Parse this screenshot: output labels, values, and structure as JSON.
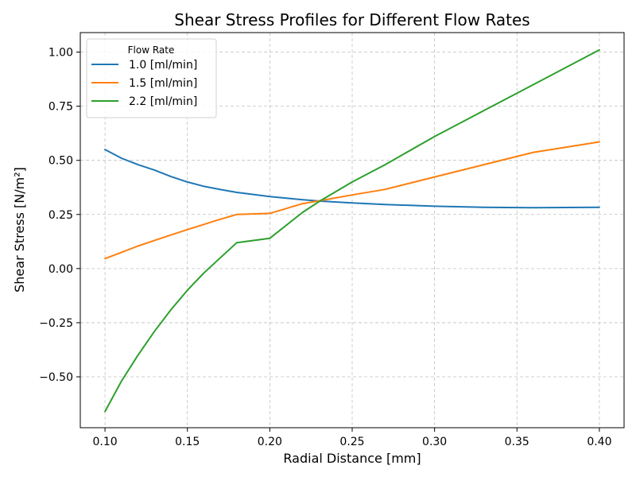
{
  "chart_data": {
    "type": "line",
    "title": "Shear Stress Profiles for Different Flow Rates",
    "xlabel": "Radial Distance [mm]",
    "ylabel": "Shear Stress [N/m²]",
    "xlim": [
      0.085,
      0.415
    ],
    "ylim": [
      -0.735,
      1.09
    ],
    "xticks": [
      0.1,
      0.15,
      0.2,
      0.25,
      0.3,
      0.35,
      0.4
    ],
    "xtick_labels": [
      "0.10",
      "0.15",
      "0.20",
      "0.25",
      "0.30",
      "0.35",
      "0.40"
    ],
    "yticks": [
      -0.5,
      -0.25,
      0.0,
      0.25,
      0.5,
      0.75,
      1.0
    ],
    "ytick_labels": [
      "−0.50",
      "−0.25",
      "0.00",
      "0.25",
      "0.50",
      "0.75",
      "1.00"
    ],
    "grid": true,
    "legend": {
      "title": "Flow Rate",
      "position": "top-left"
    },
    "x": [
      0.1,
      0.11,
      0.12,
      0.13,
      0.14,
      0.15,
      0.16,
      0.17,
      0.18,
      0.2,
      0.22,
      0.23,
      0.25,
      0.27,
      0.3,
      0.33,
      0.36,
      0.4
    ],
    "series": [
      {
        "name": "1.0 [ml/min]",
        "color": "#1f77b4",
        "values": [
          0.55,
          0.51,
          0.48,
          0.455,
          0.425,
          0.4,
          0.38,
          0.365,
          0.352,
          0.333,
          0.318,
          0.312,
          0.303,
          0.296,
          0.288,
          0.283,
          0.281,
          0.283
        ]
      },
      {
        "name": "1.5 [ml/min]",
        "color": "#ff7f0e",
        "values": [
          0.046,
          0.075,
          0.104,
          0.13,
          0.155,
          0.18,
          0.204,
          0.228,
          0.25,
          0.255,
          0.3,
          0.313,
          0.34,
          0.366,
          0.423,
          0.48,
          0.537,
          0.585
        ]
      },
      {
        "name": "2.2 [ml/min]",
        "color": "#2ca02c",
        "values": [
          -0.66,
          -0.52,
          -0.4,
          -0.29,
          -0.19,
          -0.1,
          -0.02,
          0.05,
          0.12,
          0.14,
          0.26,
          0.31,
          0.4,
          0.48,
          0.61,
          0.73,
          0.85,
          1.01
        ]
      }
    ]
  }
}
